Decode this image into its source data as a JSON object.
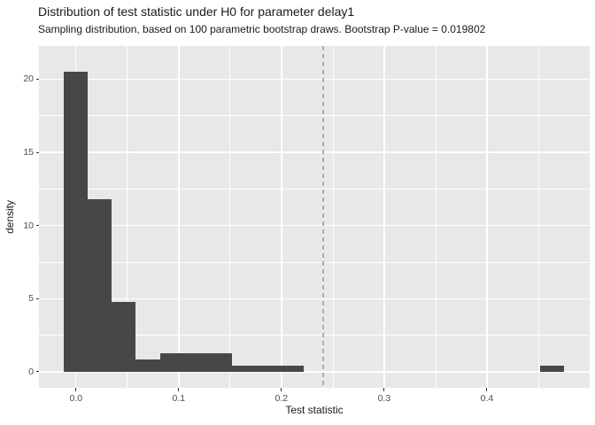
{
  "chart_data": {
    "type": "bar",
    "subtype": "histogram",
    "title": "Distribution of test statistic under H0 for parameter delay1",
    "subtitle": "Sampling distribution, based on 100 parametric bootstrap draws. Bootstrap P-value = 0.019802",
    "xlabel": "Test statistic",
    "ylabel": "density",
    "parameter": "delay1",
    "bootstrap_draws": 100,
    "p_value": 0.019802,
    "x_domain": [
      -0.036,
      0.5
    ],
    "y_domain": [
      -1.09,
      22.26
    ],
    "x_tick_values": [
      0.0,
      0.1,
      0.2,
      0.3,
      0.4
    ],
    "x_tick_labels": [
      "0.0",
      "0.1",
      "0.2",
      "0.3",
      "0.4"
    ],
    "y_tick_values": [
      0,
      5,
      10,
      15,
      20
    ],
    "y_tick_labels": [
      "0",
      "5",
      "10",
      "15",
      "20"
    ],
    "x_minor_ticks": [
      0.05,
      0.15,
      0.25,
      0.35,
      0.45
    ],
    "y_minor_ticks": [
      2.5,
      7.5,
      12.5,
      17.5
    ],
    "grid": true,
    "legend": false,
    "binwidth": 0.0233,
    "bins": [
      {
        "x0": -0.0117,
        "x1": 0.0117,
        "density": 20.5
      },
      {
        "x0": 0.0117,
        "x1": 0.035,
        "density": 11.8
      },
      {
        "x0": 0.035,
        "x1": 0.0583,
        "density": 4.8
      },
      {
        "x0": 0.0583,
        "x1": 0.0817,
        "density": 0.86
      },
      {
        "x0": 0.0817,
        "x1": 0.105,
        "density": 1.29
      },
      {
        "x0": 0.105,
        "x1": 0.1283,
        "density": 1.29
      },
      {
        "x0": 0.1283,
        "x1": 0.1517,
        "density": 1.29
      },
      {
        "x0": 0.1517,
        "x1": 0.175,
        "density": 0.43
      },
      {
        "x0": 0.175,
        "x1": 0.1983,
        "density": 0.43
      },
      {
        "x0": 0.1983,
        "x1": 0.2217,
        "density": 0.43
      },
      {
        "x0": 0.2217,
        "x1": 0.4517,
        "density": 0
      },
      {
        "x0": 0.4517,
        "x1": 0.475,
        "density": 0.43
      }
    ],
    "vline": {
      "x": 0.2406,
      "style": "dashed"
    },
    "colors": {
      "bar_fill": "#474747",
      "panel_background": "#E8E8E8",
      "gridline": "#FFFFFF",
      "vline": "#ABABAB",
      "tick_mark": "#333333",
      "tick_label": "#4D4D4D",
      "text": "#1A1A1A",
      "background": "#FFFFFF"
    }
  }
}
